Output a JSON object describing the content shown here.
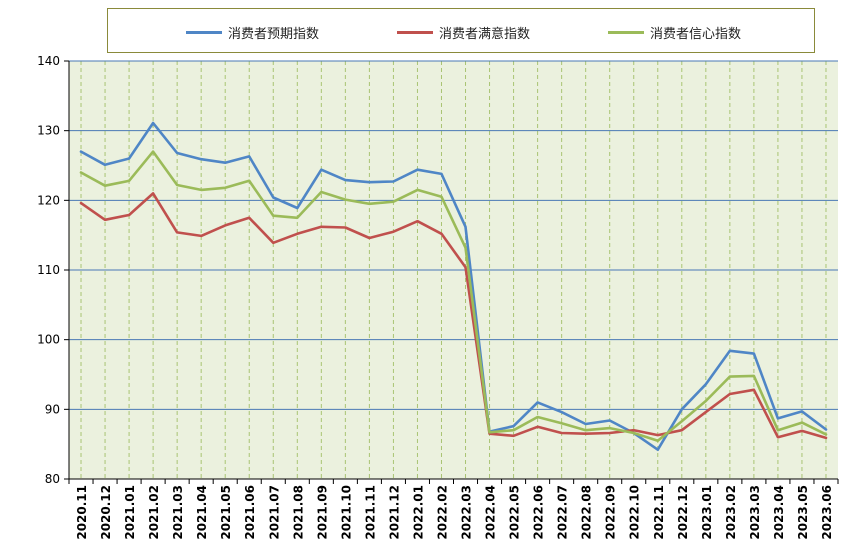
{
  "chart_data": {
    "type": "line",
    "categories": [
      "2020.11",
      "2020.12",
      "2021.01",
      "2021.02",
      "2021.03",
      "2021.04",
      "2021.05",
      "2021.06",
      "2021.07",
      "2021.08",
      "2021.09",
      "2021.10",
      "2021.11",
      "2021.12",
      "2022.01",
      "2022.02",
      "2022.03",
      "2022.04",
      "2022.05",
      "2022.06",
      "2022.07",
      "2022.08",
      "2022.09",
      "2022.10",
      "2022.11",
      "2022.12",
      "2023.01",
      "2023.02",
      "2023.03",
      "2023.04",
      "2023.05",
      "2023.06"
    ],
    "series": [
      {
        "name": "消费者预期指数",
        "color": "#4f86c6",
        "values": [
          127.0,
          125.1,
          126.0,
          131.1,
          126.8,
          125.9,
          125.4,
          126.3,
          120.4,
          118.9,
          124.4,
          122.9,
          122.6,
          122.7,
          124.4,
          123.8,
          116.2,
          86.8,
          87.6,
          91.0,
          89.6,
          87.9,
          88.4,
          86.6,
          84.2,
          90.0,
          93.6,
          98.4,
          98.0,
          88.7,
          89.7,
          87.1
        ]
      },
      {
        "name": "消费者满意指数",
        "color": "#c0504d",
        "values": [
          119.6,
          117.2,
          117.9,
          121.0,
          115.4,
          114.9,
          116.4,
          117.5,
          113.9,
          115.2,
          116.2,
          116.1,
          114.6,
          115.5,
          117.0,
          115.2,
          110.4,
          86.5,
          86.2,
          87.5,
          86.6,
          86.5,
          86.6,
          87.0,
          86.3,
          87.0,
          89.6,
          92.2,
          92.8,
          86.0,
          86.9,
          85.9
        ]
      },
      {
        "name": "消费者信心指数",
        "color": "#9bbb59",
        "values": [
          124.0,
          122.1,
          122.8,
          127.0,
          122.2,
          121.5,
          121.8,
          122.8,
          117.8,
          117.5,
          121.2,
          120.1,
          119.5,
          119.8,
          121.5,
          120.5,
          113.2,
          86.7,
          87.0,
          88.9,
          88.0,
          87.0,
          87.3,
          86.6,
          85.5,
          88.3,
          91.2,
          94.7,
          94.8,
          87.0,
          88.1,
          86.4
        ]
      }
    ],
    "ylim": [
      80,
      140
    ],
    "yticks": [
      80,
      90,
      100,
      110,
      120,
      130,
      140
    ],
    "grid": true,
    "legend": "top"
  },
  "colors": {
    "plot_background": "#ebf1de",
    "grid_major": "#4a78b5",
    "grid_vertical": "#a9c473",
    "axis": "#000000"
  }
}
